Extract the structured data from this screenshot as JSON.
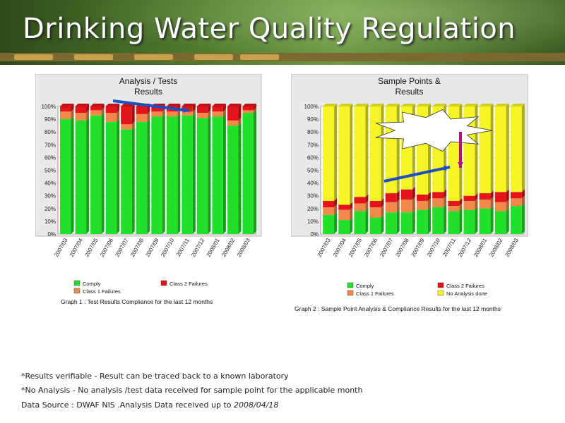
{
  "page": {
    "title": "Drinking Water Quality Regulation",
    "notes": [
      "*Results verifiable - Result can be traced back to a known laboratory",
      "*No Analysis - No analysis /test data received for sample point for the applicable month"
    ],
    "source_prefix": "Data Source : DWAF NIS .Analysis Data received up to ",
    "source_date": "2008/04/18"
  },
  "colors": {
    "comply": "#22e02a",
    "class1": "#f0894a",
    "class2": "#e3141a",
    "noanalysis": "#f5f526",
    "arrow_blue": "#1f4fbf",
    "arrow_magenta": "#b0127e"
  },
  "chart_data": [
    {
      "type": "bar",
      "stacked": true,
      "title": [
        "Analysis / Tests",
        "Results"
      ],
      "categories": [
        "2007/03",
        "2007/04",
        "2007/05",
        "2007/06",
        "2007/07",
        "2007/08",
        "2007/09",
        "2007/10",
        "2007/11",
        "2007/12",
        "2008/01",
        "2008/02",
        "2008/03"
      ],
      "ylim": [
        0,
        100
      ],
      "yticks": [
        "0%",
        "10%",
        "20%",
        "30%",
        "40%",
        "50%",
        "60%",
        "70%",
        "80%",
        "90%",
        "100%"
      ],
      "series": [
        {
          "name": "Comply",
          "color_key": "comply",
          "values": [
            90,
            89,
            93,
            88,
            82,
            88,
            92,
            92,
            93,
            91,
            92,
            85,
            95
          ]
        },
        {
          "name": "Class 1 Failures",
          "color_key": "class1",
          "values": [
            6,
            6,
            4,
            7,
            4,
            6,
            4,
            4,
            3,
            4,
            4,
            4,
            2
          ]
        },
        {
          "name": "Class 2 Failures",
          "color_key": "class2",
          "values": [
            4,
            5,
            3,
            5,
            14,
            6,
            4,
            4,
            4,
            5,
            4,
            11,
            3
          ]
        }
      ],
      "legend": [
        {
          "label": "Comply",
          "color_key": "comply"
        },
        {
          "label": "Class 2 Failures",
          "color_key": "class2"
        },
        {
          "label": "Class 1 Failures",
          "color_key": "class1"
        }
      ],
      "caption": "Graph 1 : Test Results Compliance for the last 12 months"
    },
    {
      "type": "bar",
      "stacked": true,
      "title": [
        "Sample Points &",
        "Results"
      ],
      "categories": [
        "2007/03",
        "2007/04",
        "2007/05",
        "2007/06",
        "2007/07",
        "2007/08",
        "2007/09",
        "2007/10",
        "2007/11",
        "2007/12",
        "2008/01",
        "2008/02",
        "2008/03"
      ],
      "ylim": [
        0,
        100
      ],
      "yticks": [
        "0%",
        "10%",
        "20%",
        "30%",
        "40%",
        "50%",
        "60%",
        "70%",
        "80%",
        "90%",
        "100%"
      ],
      "series": [
        {
          "name": "Comply",
          "color_key": "comply",
          "values": [
            15,
            11,
            18,
            13,
            17,
            17,
            19,
            21,
            18,
            19,
            20,
            18,
            22
          ]
        },
        {
          "name": "Class 1 Failures",
          "color_key": "class1",
          "values": [
            6,
            8,
            6,
            8,
            8,
            10,
            7,
            7,
            4,
            7,
            7,
            7,
            6
          ]
        },
        {
          "name": "Class 2 Failures",
          "color_key": "class2",
          "values": [
            5,
            4,
            5,
            5,
            7,
            8,
            5,
            5,
            4,
            4,
            5,
            8,
            5
          ]
        },
        {
          "name": "No Analysis done",
          "color_key": "noanalysis",
          "values": [
            74,
            77,
            71,
            74,
            68,
            65,
            69,
            67,
            74,
            70,
            68,
            67,
            67
          ]
        }
      ],
      "legend": [
        {
          "label": "Comply",
          "color_key": "comply"
        },
        {
          "label": "Class 2 Failures",
          "color_key": "class2"
        },
        {
          "label": "Class 1 Failures",
          "color_key": "class1"
        },
        {
          "label": "No Analysis done",
          "color_key": "noanalysis"
        }
      ],
      "caption": "Graph 2 : Sample Point Analysis & Compliance Results for the last 12 months"
    }
  ]
}
